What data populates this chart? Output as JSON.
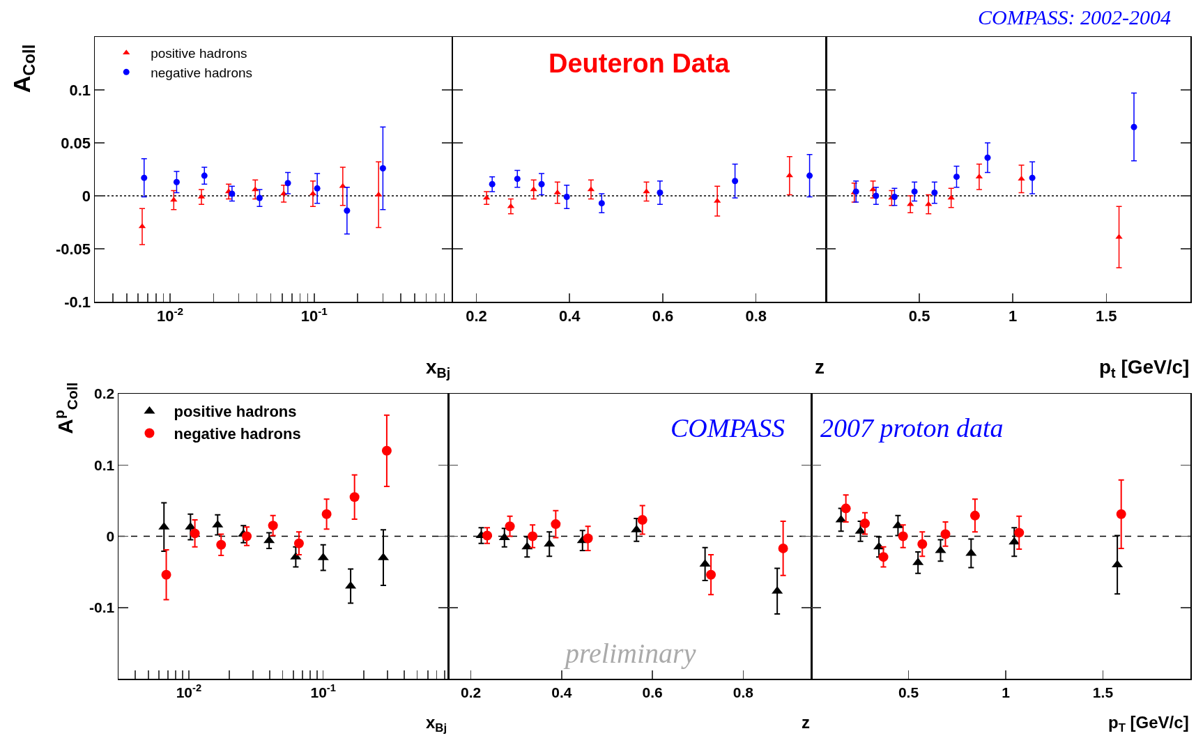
{
  "chart_data": [
    {
      "type": "scatter",
      "ylabel": "A$_{Coll}$",
      "xlabel": "x$_{Bj}$",
      "log": "x",
      "xlim": [
        0.003,
        0.9
      ],
      "xticks": [
        {
          "value": 0.004,
          "label": null
        },
        {
          "value": 0.005,
          "label": null
        },
        {
          "value": 0.006,
          "label": null
        },
        {
          "value": 0.007,
          "label": null
        },
        {
          "value": 0.008,
          "label": null
        },
        {
          "value": 0.009,
          "label": null
        },
        {
          "value": 0.01,
          "label": "10$^{-2}$"
        },
        {
          "value": 0.02,
          "label": null
        },
        {
          "value": 0.03,
          "label": null
        },
        {
          "value": 0.04,
          "label": null
        },
        {
          "value": 0.05,
          "label": null
        },
        {
          "value": 0.06,
          "label": null
        },
        {
          "value": 0.07,
          "label": null
        },
        {
          "value": 0.08,
          "label": null
        },
        {
          "value": 0.09,
          "label": null
        },
        {
          "value": 0.1,
          "label": "10$^{-1}$"
        },
        {
          "value": 0.2,
          "label": null
        },
        {
          "value": 0.3,
          "label": null
        },
        {
          "value": 0.4,
          "label": null
        },
        {
          "value": 0.5,
          "label": null
        },
        {
          "value": 0.6,
          "label": null
        },
        {
          "value": 0.7,
          "label": null
        },
        {
          "value": 0.8,
          "label": null
        },
        {
          "value": 0.9,
          "label": null
        }
      ],
      "ylim": [
        -0.1,
        0.15
      ],
      "yticks": [
        -0.1,
        -0.05,
        0,
        0.05,
        0.1
      ],
      "legend": "top left",
      "ref_lines": [
        {
          "axis": "y",
          "value": 0,
          "line_style": "dotted",
          "color": "#000000"
        }
      ],
      "series": [
        {
          "name": "positive hadrons",
          "color": "#ff0000",
          "marker": "triangle",
          "x": [
            0.0064,
            0.0106,
            0.0165,
            0.0255,
            0.039,
            0.0615,
            0.098,
            0.158,
            0.28
          ],
          "values": [
            -0.029,
            -0.004,
            -0.001,
            0.004,
            0.006,
            0.002,
            0.002,
            0.009,
            0.001
          ],
          "errors": [
            0.017,
            0.009,
            0.007,
            0.007,
            0.009,
            0.008,
            0.012,
            0.018,
            0.031
          ]
        },
        {
          "name": "negative hadrons",
          "color": "#0000ff",
          "marker": "circle",
          "x": [
            0.0066,
            0.0111,
            0.0173,
            0.0269,
            0.0418,
            0.0657,
            0.105,
            0.169,
            0.3
          ],
          "values": [
            0.017,
            0.013,
            0.019,
            0.002,
            -0.002,
            0.012,
            0.007,
            -0.014,
            0.026
          ],
          "errors": [
            0.018,
            0.01,
            0.008,
            0.007,
            0.008,
            0.01,
            0.014,
            0.022,
            0.039
          ]
        }
      ]
    },
    {
      "type": "scatter",
      "xlabel": "z",
      "annotations": [
        "Deuteron Data"
      ],
      "xlim": [
        0.15,
        0.95
      ],
      "xticks": [
        0.2,
        0.4,
        0.6,
        0.8
      ],
      "ylim": [
        -0.1,
        0.15
      ],
      "yticks": [
        -0.1,
        -0.05,
        0,
        0.05,
        0.1
      ],
      "tick_labels": "x",
      "ref_lines": [
        {
          "axis": "y",
          "value": 0,
          "line_style": "dotted",
          "color": "#000000"
        }
      ],
      "series": [
        {
          "color": "#ff0000",
          "marker": "triangle",
          "x": [
            0.222,
            0.274,
            0.323,
            0.374,
            0.446,
            0.565,
            0.717,
            0.872
          ],
          "values": [
            -0.002,
            -0.01,
            0.006,
            0.003,
            0.006,
            0.004,
            -0.005,
            0.019
          ],
          "errors": [
            0.006,
            0.007,
            0.009,
            0.01,
            0.009,
            0.009,
            0.014,
            0.018
          ]
        },
        {
          "color": "#0000ff",
          "marker": "circle",
          "x": [
            0.234,
            0.288,
            0.34,
            0.394,
            0.469,
            0.594,
            0.755,
            0.915
          ],
          "values": [
            0.011,
            0.016,
            0.011,
            -0.001,
            -0.007,
            0.003,
            0.014,
            0.019
          ],
          "errors": [
            0.007,
            0.008,
            0.01,
            0.011,
            0.009,
            0.011,
            0.016,
            0.02
          ]
        }
      ]
    },
    {
      "type": "scatter",
      "xlabel": "p$_{t}$ [GeV/c]",
      "annotations": [
        "COMPASS: 2002-2004"
      ],
      "xlim": [
        0,
        1.95
      ],
      "xticks": [
        0.5,
        1,
        1.5
      ],
      "ylim": [
        -0.1,
        0.15
      ],
      "yticks": [
        -0.1,
        -0.05,
        0,
        0.05,
        0.1
      ],
      "tick_labels": "x",
      "ref_lines": [
        {
          "axis": "y",
          "value": 0,
          "line_style": "dotted",
          "color": "#000000"
        }
      ],
      "series": [
        {
          "color": "#ff0000",
          "marker": "triangle",
          "x": [
            0.152,
            0.252,
            0.352,
            0.452,
            0.549,
            0.67,
            0.82,
            1.046,
            1.568
          ],
          "values": [
            0.003,
            0.006,
            -0.002,
            -0.008,
            -0.008,
            -0.002,
            0.018,
            0.016,
            -0.039
          ],
          "errors": [
            0.009,
            0.008,
            0.007,
            0.008,
            0.009,
            0.009,
            0.012,
            0.013,
            0.029
          ]
        },
        {
          "color": "#0000ff",
          "marker": "circle",
          "x": [
            0.161,
            0.268,
            0.367,
            0.474,
            0.581,
            0.699,
            0.865,
            1.104,
            1.648
          ],
          "values": [
            0.004,
            0.0,
            -0.001,
            0.004,
            0.003,
            0.018,
            0.036,
            0.017,
            0.065
          ],
          "errors": [
            0.01,
            0.008,
            0.008,
            0.009,
            0.01,
            0.01,
            0.014,
            0.015,
            0.032
          ]
        }
      ]
    },
    {
      "type": "scatter",
      "ylabel": "A$^{p}$$_{Coll}$",
      "xlabel": "x$_{Bj}$",
      "log": "x",
      "xlim": [
        0.003,
        0.85
      ],
      "xticks": [
        {
          "value": 0.004,
          "label": null
        },
        {
          "value": 0.005,
          "label": null
        },
        {
          "value": 0.006,
          "label": null
        },
        {
          "value": 0.007,
          "label": null
        },
        {
          "value": 0.008,
          "label": null
        },
        {
          "value": 0.009,
          "label": null
        },
        {
          "value": 0.01,
          "label": "10$^{-2}$"
        },
        {
          "value": 0.02,
          "label": null
        },
        {
          "value": 0.03,
          "label": null
        },
        {
          "value": 0.04,
          "label": null
        },
        {
          "value": 0.05,
          "label": null
        },
        {
          "value": 0.06,
          "label": null
        },
        {
          "value": 0.07,
          "label": null
        },
        {
          "value": 0.08,
          "label": null
        },
        {
          "value": 0.09,
          "label": null
        },
        {
          "value": 0.1,
          "label": "10$^{-1}$"
        },
        {
          "value": 0.2,
          "label": null
        },
        {
          "value": 0.3,
          "label": null
        },
        {
          "value": 0.4,
          "label": null
        },
        {
          "value": 0.5,
          "label": null
        },
        {
          "value": 0.6,
          "label": null
        },
        {
          "value": 0.7,
          "label": null
        },
        {
          "value": 0.8,
          "label": null
        }
      ],
      "ylim": [
        -0.2,
        0.2
      ],
      "yticks": [
        -0.1,
        0,
        0.1,
        0.2
      ],
      "legend": "top left",
      "ref_lines": [
        {
          "axis": "y",
          "value": 0,
          "line_style": "dashed",
          "color": "#000000"
        }
      ],
      "series": [
        {
          "name": "positive hadrons",
          "color": "#000000",
          "marker": "triangle",
          "x": [
            0.00654,
            0.0103,
            0.0164,
            0.0255,
            0.0396,
            0.0625,
            0.1,
            0.16,
            0.28
          ],
          "values": [
            0.013,
            0.013,
            0.016,
            0.003,
            -0.006,
            -0.029,
            -0.03,
            -0.07,
            -0.03
          ],
          "errors": [
            0.034,
            0.018,
            0.014,
            0.012,
            0.011,
            0.014,
            0.018,
            0.024,
            0.039
          ]
        },
        {
          "name": "negative hadrons",
          "color": "#ff0000",
          "marker": "circle",
          "x": [
            0.0068,
            0.0111,
            0.0174,
            0.027,
            0.0423,
            0.066,
            0.106,
            0.171,
            0.297
          ],
          "values": [
            -0.054,
            0.004,
            -0.012,
            0.0,
            0.015,
            -0.01,
            0.031,
            0.055,
            0.12
          ],
          "errors": [
            0.035,
            0.019,
            0.015,
            0.013,
            0.014,
            0.016,
            0.021,
            0.031,
            0.05
          ]
        }
      ]
    },
    {
      "type": "scatter",
      "xlabel": "z",
      "annotations": [
        "COMPASS",
        "preliminary"
      ],
      "xlim": [
        0.15,
        0.95
      ],
      "xticks": [
        0.2,
        0.4,
        0.6,
        0.8
      ],
      "ylim": [
        -0.2,
        0.2
      ],
      "yticks": [
        -0.1,
        0,
        0.1,
        0.2
      ],
      "tick_labels": "x",
      "ref_lines": [
        {
          "axis": "y",
          "value": 0,
          "line_style": "dashed",
          "color": "#000000"
        }
      ],
      "series": [
        {
          "color": "#000000",
          "marker": "triangle",
          "x": [
            0.223,
            0.274,
            0.324,
            0.373,
            0.446,
            0.565,
            0.716,
            0.875
          ],
          "values": [
            0.001,
            -0.002,
            -0.015,
            -0.011,
            -0.006,
            0.009,
            -0.039,
            -0.077
          ],
          "errors": [
            0.011,
            0.013,
            0.014,
            0.017,
            0.014,
            0.016,
            0.023,
            0.032
          ]
        },
        {
          "color": "#ff0000",
          "marker": "circle",
          "x": [
            0.236,
            0.286,
            0.336,
            0.387,
            0.458,
            0.578,
            0.729,
            0.888
          ],
          "values": [
            0.001,
            0.014,
            0.0,
            0.017,
            -0.003,
            0.023,
            -0.054,
            -0.017
          ],
          "errors": [
            0.011,
            0.014,
            0.016,
            0.019,
            0.017,
            0.02,
            0.028,
            0.038
          ]
        }
      ]
    },
    {
      "type": "scatter",
      "xlabel": "p$_{T}$ [GeV/c]",
      "annotations": [
        "2007 proton data"
      ],
      "xlim": [
        0,
        1.95
      ],
      "xticks": [
        0.5,
        1,
        1.5
      ],
      "ylim": [
        -0.2,
        0.2
      ],
      "yticks": [
        -0.1,
        0,
        0.1,
        0.2
      ],
      "tick_labels": "x",
      "ref_lines": [
        {
          "axis": "y",
          "value": 0,
          "line_style": "dashed",
          "color": "#000000"
        }
      ],
      "series": [
        {
          "color": "#000000",
          "marker": "triangle",
          "x": [
            0.153,
            0.253,
            0.348,
            0.446,
            0.549,
            0.665,
            0.822,
            1.044,
            1.574
          ],
          "values": [
            0.023,
            0.007,
            -0.015,
            0.015,
            -0.037,
            -0.02,
            -0.024,
            -0.008,
            -0.04
          ],
          "errors": [
            0.016,
            0.014,
            0.014,
            0.014,
            0.015,
            0.015,
            0.02,
            0.02,
            0.041
          ]
        },
        {
          "color": "#ff0000",
          "marker": "circle",
          "x": [
            0.178,
            0.276,
            0.371,
            0.472,
            0.571,
            0.69,
            0.842,
            1.069,
            1.594
          ],
          "values": [
            0.039,
            0.018,
            -0.029,
            0.0,
            -0.011,
            0.003,
            0.029,
            0.005,
            0.031
          ],
          "errors": [
            0.019,
            0.015,
            0.014,
            0.016,
            0.017,
            0.017,
            0.023,
            0.023,
            0.048
          ]
        }
      ]
    }
  ]
}
